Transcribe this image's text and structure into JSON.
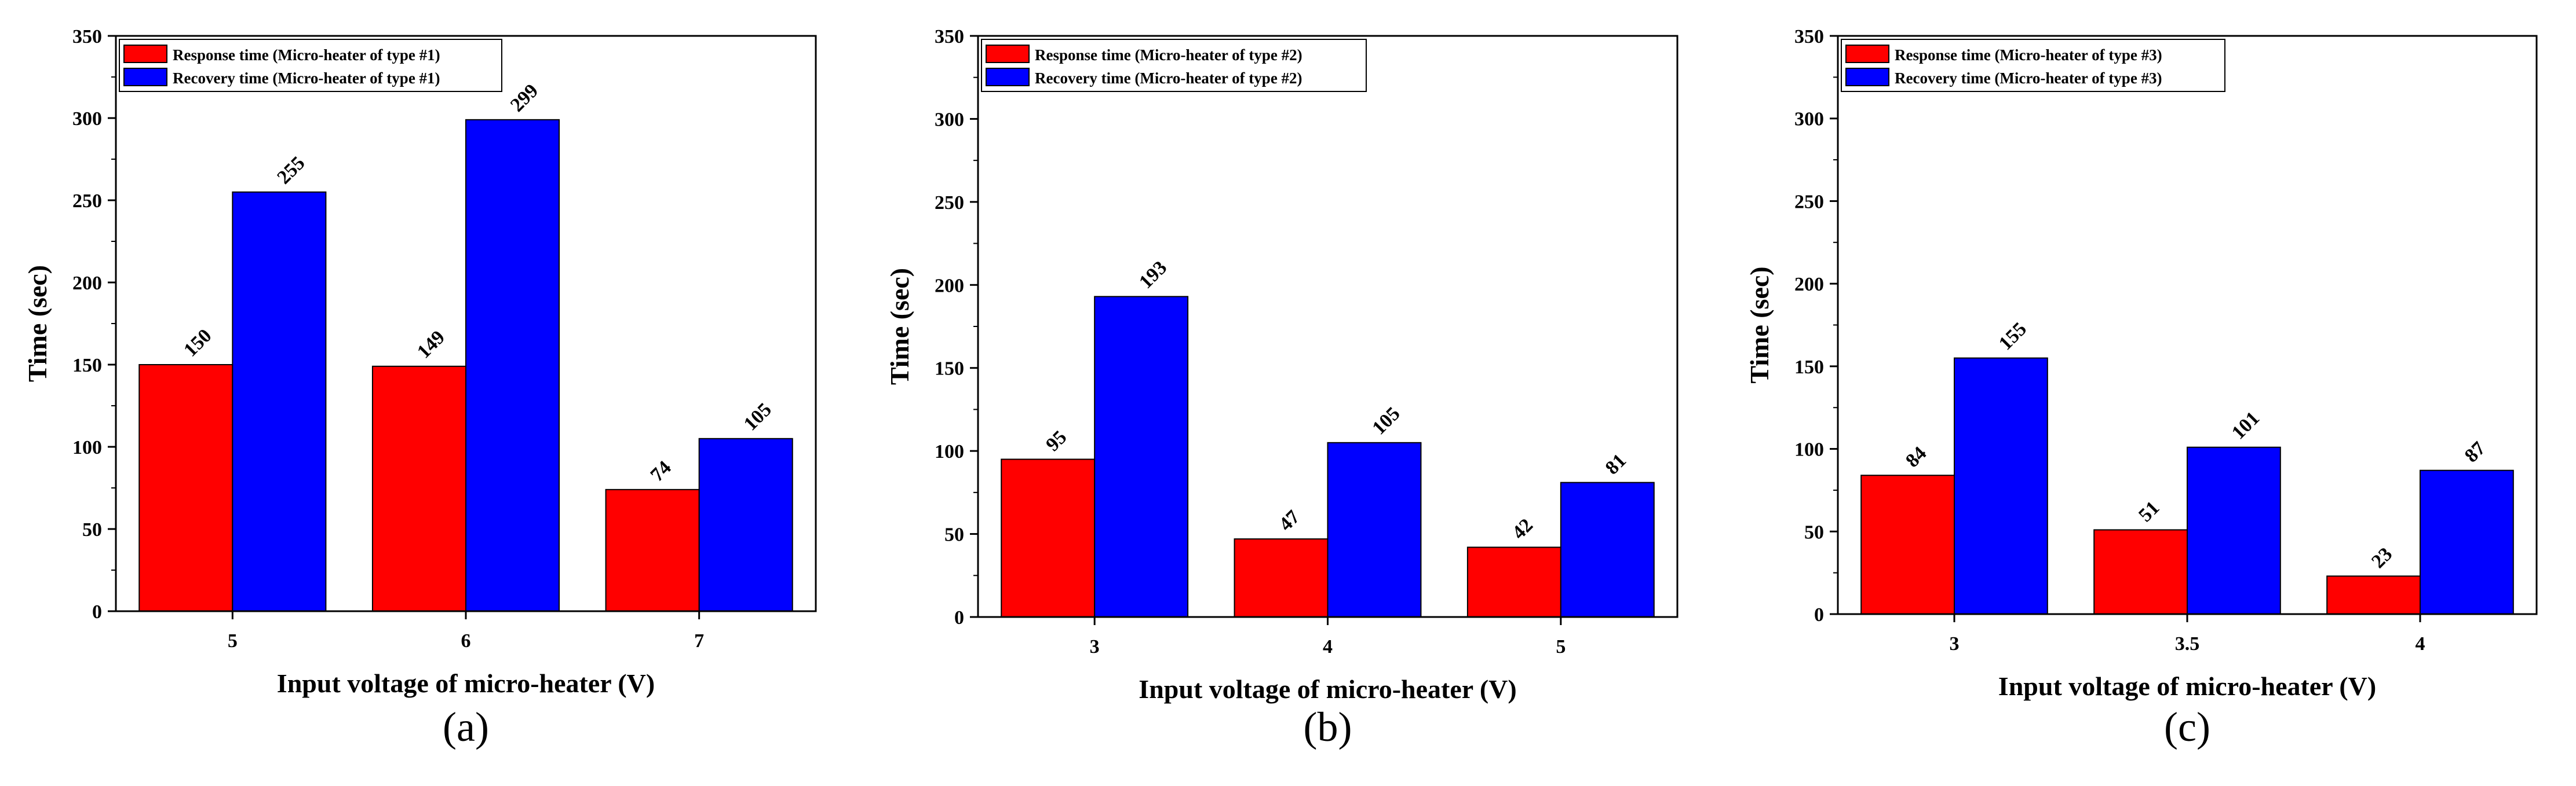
{
  "colors": {
    "response": "#ff0000",
    "recovery": "#0000ff",
    "axis": "#000000"
  },
  "chart_data": [
    {
      "type": "bar",
      "panel": "a",
      "caption_letter": "a",
      "xlabel": "Input voltage of micro-heater (V)",
      "ylabel": "Time (sec)",
      "ylim": [
        0,
        350
      ],
      "yticks": [
        0,
        50,
        100,
        150,
        200,
        250,
        300,
        350
      ],
      "categories": [
        "5",
        "6",
        "7"
      ],
      "legend_position": "top-left",
      "series": [
        {
          "name": "Response time (Micro-heater of type #1)",
          "color": "#ff0000",
          "values": [
            150,
            149,
            74
          ]
        },
        {
          "name": "Recovery time (Micro-heater of type #1)",
          "color": "#0000ff",
          "values": [
            255,
            299,
            105
          ]
        }
      ]
    },
    {
      "type": "bar",
      "panel": "b",
      "caption_letter": "b",
      "xlabel": "Input voltage of micro-heater (V)",
      "ylabel": "Time (sec)",
      "ylim": [
        0,
        350
      ],
      "yticks": [
        0,
        50,
        100,
        150,
        200,
        250,
        300,
        350
      ],
      "categories": [
        "3",
        "4",
        "5"
      ],
      "legend_position": "top-left",
      "series": [
        {
          "name": "Response time (Micro-heater of type #2)",
          "color": "#ff0000",
          "values": [
            95,
            47,
            42
          ]
        },
        {
          "name": "Recovery time (Micro-heater of type #2)",
          "color": "#0000ff",
          "values": [
            193,
            105,
            81
          ]
        }
      ]
    },
    {
      "type": "bar",
      "panel": "c",
      "caption_letter": "c",
      "xlabel": "Input voltage of micro-heater (V)",
      "ylabel": "Time (sec)",
      "ylim": [
        0,
        350
      ],
      "yticks": [
        0,
        50,
        100,
        150,
        200,
        250,
        300,
        350
      ],
      "categories": [
        "3",
        "3.5",
        "4"
      ],
      "legend_position": "top-left",
      "series": [
        {
          "name": "Response time (Micro-heater of type #3)",
          "color": "#ff0000",
          "values": [
            84,
            51,
            23
          ]
        },
        {
          "name": "Recovery time (Micro-heater of type #3)",
          "color": "#0000ff",
          "values": [
            155,
            101,
            87
          ]
        }
      ]
    }
  ]
}
